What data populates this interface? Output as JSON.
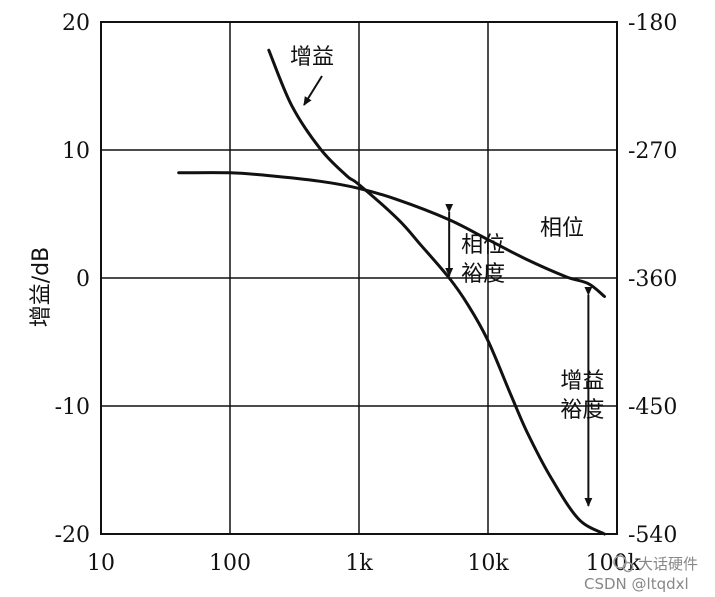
{
  "chart_data": {
    "type": "line",
    "xlabel": "",
    "ylabel": "增益/dB",
    "x_scale": "log",
    "xlim": [
      10,
      100000
    ],
    "ylim": [
      -20,
      20
    ],
    "y2lim": [
      -540,
      -180
    ],
    "grid": true,
    "x_ticks": [
      {
        "value": 10,
        "label": "10"
      },
      {
        "value": 100,
        "label": "100"
      },
      {
        "value": 1000,
        "label": "1k"
      },
      {
        "value": 10000,
        "label": "10k"
      },
      {
        "value": 100000,
        "label": "100k"
      }
    ],
    "y_ticks": [
      {
        "value": 20,
        "label": "20"
      },
      {
        "value": 10,
        "label": "10"
      },
      {
        "value": 0,
        "label": "0"
      },
      {
        "value": -10,
        "label": "-10"
      },
      {
        "value": -20,
        "label": "-20"
      }
    ],
    "y2_ticks": [
      {
        "value": -180,
        "label": "-180"
      },
      {
        "value": -270,
        "label": "-270"
      },
      {
        "value": -360,
        "label": "-360"
      },
      {
        "value": -450,
        "label": "-450"
      },
      {
        "value": -540,
        "label": "-540"
      }
    ],
    "series": [
      {
        "name": "增益",
        "axis": "left",
        "x": [
          200,
          300,
          500,
          800,
          1000,
          2000,
          3000,
          5000,
          7000,
          10000,
          15000,
          20000,
          30000,
          50000,
          80000
        ],
        "y": [
          17.8,
          13.5,
          10.1,
          8.0,
          7.3,
          4.6,
          2.6,
          0.0,
          -2.1,
          -4.9,
          -9.1,
          -12.0,
          -15.4,
          -18.8,
          -20.0
        ]
      },
      {
        "name": "相位",
        "axis": "right",
        "x": [
          40,
          100,
          200,
          500,
          1000,
          2000,
          5000,
          10000,
          20000,
          40000,
          60000,
          80000
        ],
        "y": [
          -286,
          -286,
          -288,
          -292,
          -297,
          -305,
          -319,
          -333,
          -347,
          -359,
          -364,
          -373
        ]
      }
    ],
    "annotations": [
      {
        "text_lines": [
          "增益"
        ],
        "target": "增益"
      },
      {
        "text_lines": [
          "相位"
        ],
        "target": "相位"
      },
      {
        "text_lines": [
          "相位",
          "裕度"
        ],
        "x": 5000,
        "from_y": 5.8,
        "to_y": 0
      },
      {
        "text_lines": [
          "增益",
          "裕度"
        ],
        "x": 60000,
        "from_y": -1.0,
        "to_y": -17.8
      }
    ]
  },
  "watermark": {
    "line1": "大话硬件",
    "line2": "CSDN @ltqdxl"
  }
}
